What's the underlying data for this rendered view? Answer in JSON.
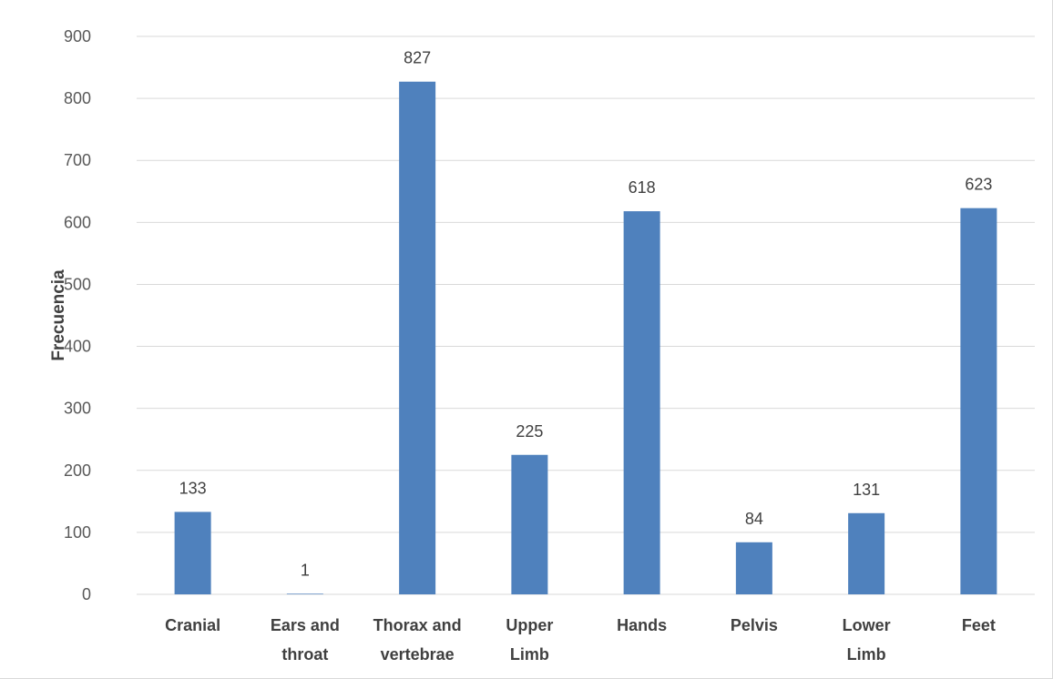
{
  "chart_data": {
    "type": "bar",
    "title": "",
    "xlabel": "",
    "ylabel": "Frecuencia",
    "ylim": [
      0,
      900
    ],
    "yticks": [
      0,
      100,
      200,
      300,
      400,
      500,
      600,
      700,
      800,
      900
    ],
    "categories": [
      [
        "Cranial"
      ],
      [
        "Ears and",
        "throat"
      ],
      [
        "Thorax and",
        "vertebrae"
      ],
      [
        "Upper",
        "Limb"
      ],
      [
        "Hands"
      ],
      [
        "Pelvis"
      ],
      [
        "Lower",
        "Limb"
      ],
      [
        "Feet"
      ]
    ],
    "values": [
      133,
      1,
      827,
      225,
      618,
      84,
      131,
      623
    ],
    "data_labels": true,
    "grid": true,
    "legend": "none",
    "bar_color": "#4F81BD",
    "grid_color": "#d9d9d9"
  }
}
